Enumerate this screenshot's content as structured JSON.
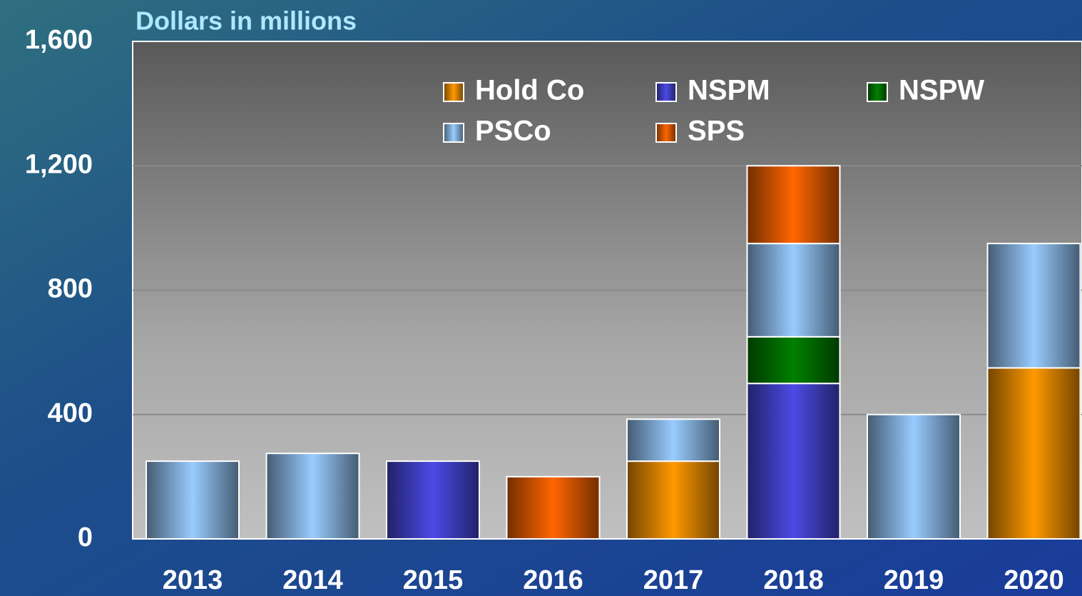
{
  "chart_data": {
    "type": "stacked_bar",
    "title": "Dollars in millions",
    "categories": [
      "2013",
      "2014",
      "2015",
      "2016",
      "2017",
      "2018",
      "2019",
      "2020"
    ],
    "series": [
      {
        "name": "Hold Co",
        "color": "#ff9900",
        "values": [
          null,
          null,
          null,
          null,
          250,
          null,
          null,
          550
        ]
      },
      {
        "name": "NSPM",
        "color": "#4b4be6",
        "values": [
          null,
          null,
          250,
          null,
          null,
          500,
          null,
          null
        ]
      },
      {
        "name": "NSPW",
        "color": "#008000",
        "values": [
          null,
          null,
          null,
          null,
          null,
          150,
          null,
          null
        ]
      },
      {
        "name": "PSCo",
        "color": "#99ccff",
        "values": [
          250,
          275,
          null,
          null,
          135,
          300,
          400,
          400
        ]
      },
      {
        "name": "SPS",
        "color": "#ff6600",
        "values": [
          null,
          null,
          null,
          200,
          null,
          250,
          null,
          null
        ]
      }
    ],
    "ylim": [
      0,
      1600
    ],
    "yticks": [
      0,
      {
        "value": 400,
        "label": "400"
      },
      {
        "value": 800,
        "label": "800"
      },
      {
        "value": 1200,
        "label": "1,200"
      },
      {
        "value": 1600,
        "label": "1,600"
      }
    ],
    "grid": true,
    "legend_position": "top"
  }
}
